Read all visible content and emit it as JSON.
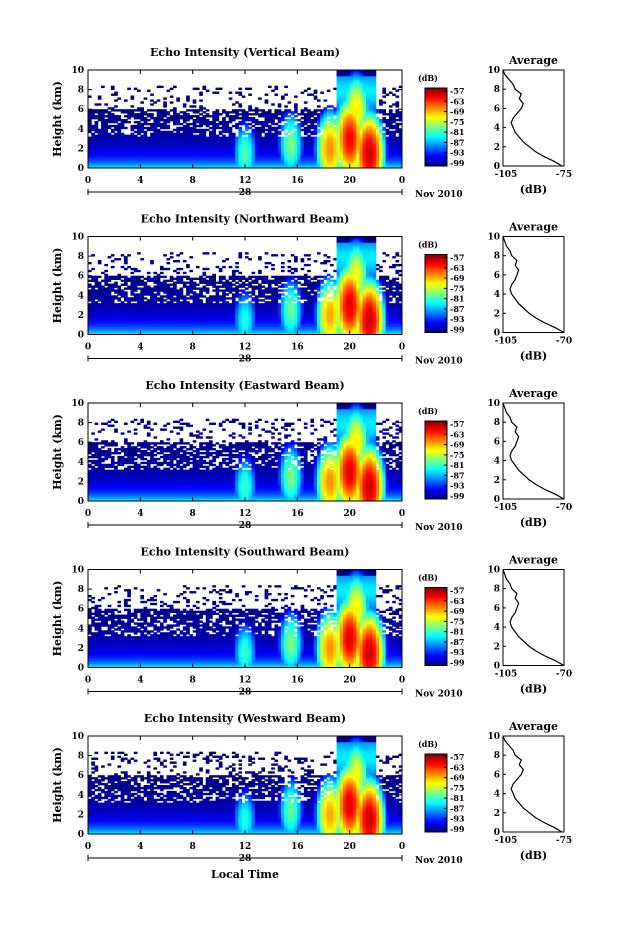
{
  "footer_xlabel": "Local Time",
  "chart_data": [
    {
      "type": "heatmap",
      "title": "Echo Intensity (Vertical Beam)",
      "ylabel": "Height (km)",
      "ylim": [
        0,
        10
      ],
      "yticks": [
        0,
        2,
        4,
        6,
        8,
        10
      ],
      "xlim": [
        0,
        24
      ],
      "xtick_labels": [
        "0",
        "4",
        "8",
        "12",
        "16",
        "20",
        "0"
      ],
      "date_label": "28",
      "month_year": "Nov 2010",
      "colorbar": {
        "unit": "(dB)",
        "ticks": [
          "-57",
          "-63",
          "-69",
          "-75",
          "-81",
          "-87",
          "-93",
          "-99"
        ],
        "range": [
          -99,
          -57
        ]
      },
      "cells": [
        {
          "x": 12,
          "y": 1.5,
          "v": -80
        },
        {
          "x": 15.5,
          "y": 2.5,
          "v": -78
        },
        {
          "x": 18.5,
          "y": 2.0,
          "v": -68
        },
        {
          "x": 20,
          "y": 3.0,
          "v": -62
        },
        {
          "x": 20.5,
          "y": 6.0,
          "v": -72
        },
        {
          "x": 21.5,
          "y": 1.5,
          "v": -60
        }
      ],
      "profile": {
        "title": "Average",
        "xlabel": "(dB)",
        "xlim": [
          -105,
          -75
        ],
        "xtick_labels": [
          "-105",
          "-75"
        ],
        "ylim": [
          0,
          10
        ],
        "yticks": [
          0,
          2,
          4,
          6,
          8,
          10
        ],
        "points": [
          [
            -76,
            0
          ],
          [
            -80,
            0.5
          ],
          [
            -85,
            1
          ],
          [
            -89,
            1.5
          ],
          [
            -92,
            2
          ],
          [
            -95,
            2.5
          ],
          [
            -97,
            3
          ],
          [
            -99,
            3.5
          ],
          [
            -100,
            4
          ],
          [
            -101,
            4.5
          ],
          [
            -100,
            5
          ],
          [
            -98,
            5.5
          ],
          [
            -96,
            6
          ],
          [
            -95,
            6.5
          ],
          [
            -97,
            7
          ],
          [
            -96,
            7.5
          ],
          [
            -99,
            8
          ],
          [
            -100,
            8.5
          ],
          [
            -102,
            9
          ],
          [
            -104,
            9.5
          ],
          [
            -105,
            10
          ]
        ]
      }
    },
    {
      "type": "heatmap",
      "title": "Echo Intensity (Northward Beam)",
      "ylabel": "Height (km)",
      "ylim": [
        0,
        10
      ],
      "yticks": [
        0,
        2,
        4,
        6,
        8,
        10
      ],
      "xlim": [
        0,
        24
      ],
      "xtick_labels": [
        "0",
        "4",
        "8",
        "12",
        "16",
        "20",
        "0"
      ],
      "date_label": "28",
      "month_year": "Nov 2010",
      "colorbar": {
        "unit": "(dB)",
        "ticks": [
          "-57",
          "-63",
          "-69",
          "-75",
          "-81",
          "-87",
          "-93",
          "-99"
        ],
        "range": [
          -99,
          -57
        ]
      },
      "cells": [
        {
          "x": 12,
          "y": 1.5,
          "v": -82
        },
        {
          "x": 15.5,
          "y": 2.5,
          "v": -79
        },
        {
          "x": 18.5,
          "y": 2.0,
          "v": -69
        },
        {
          "x": 20,
          "y": 3.0,
          "v": -61
        },
        {
          "x": 20.5,
          "y": 6.0,
          "v": -73
        },
        {
          "x": 21.5,
          "y": 1.5,
          "v": -60
        }
      ],
      "profile": {
        "title": "Average",
        "xlabel": "(dB)",
        "xlim": [
          -105,
          -70
        ],
        "xtick_labels": [
          "-105",
          "-70"
        ],
        "ylim": [
          0,
          10
        ],
        "yticks": [
          0,
          2,
          4,
          6,
          8,
          10
        ],
        "points": [
          [
            -70,
            0
          ],
          [
            -75,
            0.5
          ],
          [
            -81,
            1
          ],
          [
            -86,
            1.5
          ],
          [
            -90,
            2
          ],
          [
            -93,
            2.5
          ],
          [
            -96,
            3
          ],
          [
            -98,
            3.5
          ],
          [
            -100,
            4
          ],
          [
            -101,
            4.5
          ],
          [
            -100,
            5
          ],
          [
            -98,
            5.5
          ],
          [
            -97,
            6
          ],
          [
            -96,
            6.5
          ],
          [
            -98,
            7
          ],
          [
            -97,
            7.5
          ],
          [
            -100,
            8
          ],
          [
            -101,
            8.5
          ],
          [
            -103,
            9
          ],
          [
            -104,
            9.5
          ],
          [
            -105,
            10
          ]
        ]
      }
    },
    {
      "type": "heatmap",
      "title": "Echo Intensity (Eastward Beam)",
      "ylabel": "Height (km)",
      "ylim": [
        0,
        10
      ],
      "yticks": [
        0,
        2,
        4,
        6,
        8,
        10
      ],
      "xlim": [
        0,
        24
      ],
      "xtick_labels": [
        "0",
        "4",
        "8",
        "12",
        "16",
        "20",
        "0"
      ],
      "date_label": "28",
      "month_year": "Nov 2010",
      "colorbar": {
        "unit": "(dB)",
        "ticks": [
          "-57",
          "-63",
          "-69",
          "-75",
          "-81",
          "-87",
          "-93",
          "-99"
        ],
        "range": [
          -99,
          -57
        ]
      },
      "cells": [
        {
          "x": 12,
          "y": 1.5,
          "v": -81
        },
        {
          "x": 15.5,
          "y": 2.5,
          "v": -78
        },
        {
          "x": 18.5,
          "y": 2.0,
          "v": -68
        },
        {
          "x": 20,
          "y": 3.0,
          "v": -61
        },
        {
          "x": 20.5,
          "y": 6.0,
          "v": -72
        },
        {
          "x": 21.5,
          "y": 1.5,
          "v": -60
        }
      ],
      "profile": {
        "title": "Average",
        "xlabel": "(dB)",
        "xlim": [
          -105,
          -70
        ],
        "xtick_labels": [
          "-105",
          "-70"
        ],
        "ylim": [
          0,
          10
        ],
        "yticks": [
          0,
          2,
          4,
          6,
          8,
          10
        ],
        "points": [
          [
            -70,
            0
          ],
          [
            -75,
            0.5
          ],
          [
            -81,
            1
          ],
          [
            -86,
            1.5
          ],
          [
            -90,
            2
          ],
          [
            -93,
            2.5
          ],
          [
            -96,
            3
          ],
          [
            -98,
            3.5
          ],
          [
            -100,
            4
          ],
          [
            -101,
            4.5
          ],
          [
            -100,
            5
          ],
          [
            -98,
            5.5
          ],
          [
            -97,
            6
          ],
          [
            -96,
            6.5
          ],
          [
            -98,
            7
          ],
          [
            -97,
            7.5
          ],
          [
            -100,
            8
          ],
          [
            -101,
            8.5
          ],
          [
            -103,
            9
          ],
          [
            -104,
            9.5
          ],
          [
            -105,
            10
          ]
        ]
      }
    },
    {
      "type": "heatmap",
      "title": "Echo Intensity (Southward Beam)",
      "ylabel": "Height (km)",
      "ylim": [
        0,
        10
      ],
      "yticks": [
        0,
        2,
        4,
        6,
        8,
        10
      ],
      "xlim": [
        0,
        24
      ],
      "xtick_labels": [
        "0",
        "4",
        "8",
        "12",
        "16",
        "20",
        "0"
      ],
      "date_label": "28",
      "month_year": "Nov 2010",
      "colorbar": {
        "unit": "(dB)",
        "ticks": [
          "-57",
          "-63",
          "-69",
          "-75",
          "-81",
          "-87",
          "-93",
          "-99"
        ],
        "range": [
          -99,
          -57
        ]
      },
      "cells": [
        {
          "x": 12,
          "y": 1.5,
          "v": -81
        },
        {
          "x": 15.5,
          "y": 2.5,
          "v": -78
        },
        {
          "x": 18.5,
          "y": 2.0,
          "v": -68
        },
        {
          "x": 20,
          "y": 3.0,
          "v": -61
        },
        {
          "x": 20.5,
          "y": 6.0,
          "v": -72
        },
        {
          "x": 21.5,
          "y": 1.5,
          "v": -60
        }
      ],
      "profile": {
        "title": "Average",
        "xlabel": "(dB)",
        "xlim": [
          -105,
          -70
        ],
        "xtick_labels": [
          "-105",
          "-70"
        ],
        "ylim": [
          0,
          10
        ],
        "yticks": [
          0,
          2,
          4,
          6,
          8,
          10
        ],
        "points": [
          [
            -70,
            0
          ],
          [
            -75,
            0.5
          ],
          [
            -81,
            1
          ],
          [
            -86,
            1.5
          ],
          [
            -90,
            2
          ],
          [
            -93,
            2.5
          ],
          [
            -96,
            3
          ],
          [
            -98,
            3.5
          ],
          [
            -100,
            4
          ],
          [
            -101,
            4.5
          ],
          [
            -100,
            5
          ],
          [
            -98,
            5.5
          ],
          [
            -97,
            6
          ],
          [
            -96,
            6.5
          ],
          [
            -98,
            7
          ],
          [
            -97,
            7.5
          ],
          [
            -100,
            8
          ],
          [
            -101,
            8.5
          ],
          [
            -103,
            9
          ],
          [
            -104,
            9.5
          ],
          [
            -105,
            10
          ]
        ]
      }
    },
    {
      "type": "heatmap",
      "title": "Echo Intensity (Westward Beam)",
      "ylabel": "Height (km)",
      "ylim": [
        0,
        10
      ],
      "yticks": [
        0,
        2,
        4,
        6,
        8,
        10
      ],
      "xlim": [
        0,
        24
      ],
      "xtick_labels": [
        "0",
        "4",
        "8",
        "12",
        "16",
        "20",
        "0"
      ],
      "date_label": "28",
      "month_year": "Nov 2010",
      "colorbar": {
        "unit": "(dB)",
        "ticks": [
          "-57",
          "-63",
          "-69",
          "-75",
          "-81",
          "-87",
          "-93",
          "-99"
        ],
        "range": [
          -99,
          -57
        ]
      },
      "cells": [
        {
          "x": 12,
          "y": 1.5,
          "v": -82
        },
        {
          "x": 15.5,
          "y": 2.5,
          "v": -79
        },
        {
          "x": 18.5,
          "y": 2.0,
          "v": -69
        },
        {
          "x": 20,
          "y": 3.0,
          "v": -61
        },
        {
          "x": 20.5,
          "y": 6.0,
          "v": -73
        },
        {
          "x": 21.5,
          "y": 1.5,
          "v": -60
        }
      ],
      "profile": {
        "title": "Average",
        "xlabel": "(dB)",
        "xlim": [
          -105,
          -75
        ],
        "xtick_labels": [
          "-105",
          "-75"
        ],
        "ylim": [
          0,
          10
        ],
        "yticks": [
          0,
          2,
          4,
          6,
          8,
          10
        ],
        "points": [
          [
            -76,
            0
          ],
          [
            -80,
            0.5
          ],
          [
            -85,
            1
          ],
          [
            -89,
            1.5
          ],
          [
            -92,
            2
          ],
          [
            -95,
            2.5
          ],
          [
            -97,
            3
          ],
          [
            -99,
            3.5
          ],
          [
            -100,
            4
          ],
          [
            -101,
            4.5
          ],
          [
            -100,
            5
          ],
          [
            -98,
            5.5
          ],
          [
            -96,
            6
          ],
          [
            -95,
            6.5
          ],
          [
            -97,
            7
          ],
          [
            -96,
            7.5
          ],
          [
            -99,
            8
          ],
          [
            -100,
            8.5
          ],
          [
            -102,
            9
          ],
          [
            -104,
            9.5
          ],
          [
            -105,
            10
          ]
        ]
      }
    }
  ]
}
